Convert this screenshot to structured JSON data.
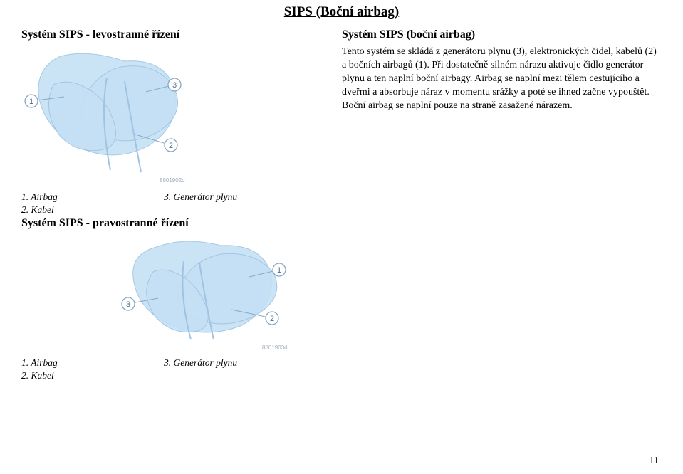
{
  "title_center": "SIPS (Boční airbag)",
  "left_heading": "Systém SIPS - levostranné řízení",
  "right_heading": "Systém SIPS (boční airbag)",
  "body_text": "Tento systém se skládá z generátoru plynu (3), elektronických čidel, kabelů (2) a bočních airbagů (1). Při dostatečně silném nárazu aktivuje čidlo generátor plynu a ten naplní boční airbagy. Airbag se naplní mezi tělem cestujícího a dveřmi a absorbuje náraz v momentu srážky a poté se ihned začne vypouštět. Boční airbag se naplní pouze na straně zasažené nárazem.",
  "caption1": {
    "c1a": "1. Airbag",
    "c1b": "2. Kabel",
    "c2a": "3. Generátor plynu"
  },
  "mid_heading": "Systém SIPS - pravostranné řízení",
  "caption2": {
    "c1a": "1. Airbag",
    "c1b": "2. Kabel",
    "c2a": "3. Generátor plynu"
  },
  "page_number": "11",
  "illus": {
    "bg": "#ffffff",
    "seat_fill": "#c5e0f4",
    "seat_stroke": "#9fc3e2",
    "label_circle_fill": "#ffffff",
    "label_circle_stroke": "#8aa7c4",
    "label_text_color": "#4f6b88",
    "leader_color": "#8aa7c4",
    "credit_color": "#9faec0"
  }
}
